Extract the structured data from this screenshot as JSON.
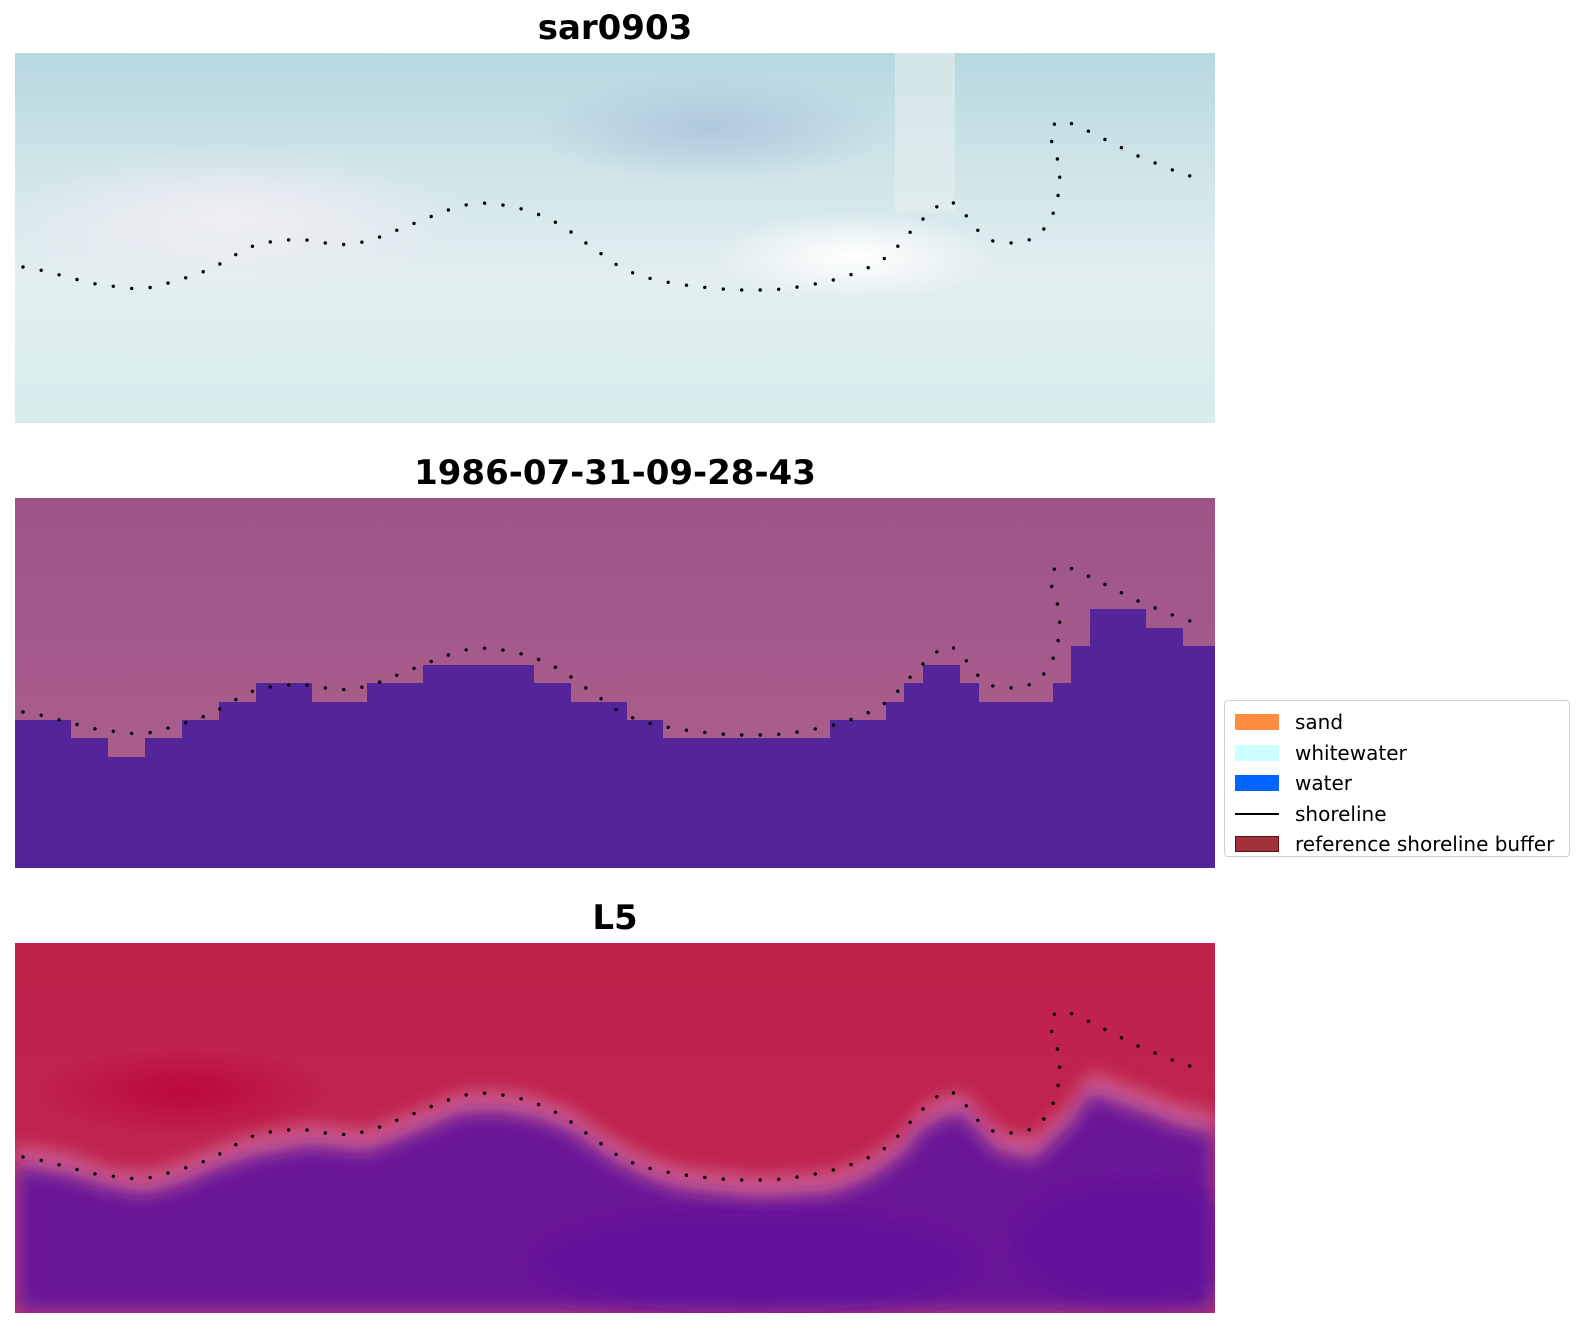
{
  "panels": [
    {
      "title": "sar0903"
    },
    {
      "title": "1986-07-31-09-28-43"
    },
    {
      "title": "L5"
    }
  ],
  "legend": {
    "placement": "right",
    "items": [
      {
        "label": "sand",
        "color": "#ff8c40",
        "kind": "patch"
      },
      {
        "label": "whitewater",
        "color": "#ccffff",
        "kind": "patch"
      },
      {
        "label": "water",
        "color": "#0064ff",
        "kind": "patch"
      },
      {
        "label": "shoreline",
        "color": "#000000",
        "kind": "line"
      },
      {
        "label": "reference shoreline buffer",
        "color": "#a0303a",
        "kind": "patch"
      }
    ]
  },
  "colors": {
    "sar_base": "#cfe6ea",
    "classified_land": "#a85a8e",
    "classified_water": "#53249a",
    "index_land": "#c0244c",
    "index_water": "#62129a",
    "shoreline_dots": "#000000"
  }
}
